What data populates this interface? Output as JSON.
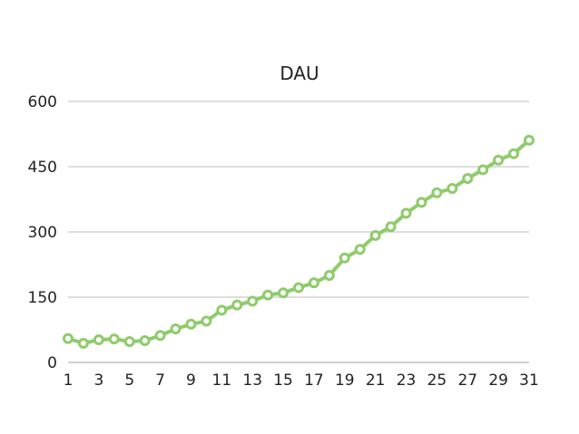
{
  "chart_data": {
    "type": "line",
    "title": "DAU",
    "xlabel": "",
    "ylabel": "",
    "x": [
      1,
      2,
      3,
      4,
      5,
      6,
      7,
      8,
      9,
      10,
      11,
      12,
      13,
      14,
      15,
      16,
      17,
      18,
      19,
      20,
      21,
      22,
      23,
      24,
      25,
      26,
      27,
      28,
      29,
      30,
      31
    ],
    "x_tick_labels": [
      "1",
      "3",
      "5",
      "7",
      "9",
      "11",
      "13",
      "15",
      "17",
      "19",
      "21",
      "23",
      "25",
      "27",
      "29",
      "31"
    ],
    "y_ticks": [
      0,
      150,
      300,
      450,
      600
    ],
    "ylim": [
      0,
      600
    ],
    "grid": true,
    "legend": "none",
    "series": [
      {
        "name": "",
        "color": "#8fcb6b",
        "values": [
          55,
          44,
          52,
          54,
          48,
          50,
          62,
          77,
          88,
          95,
          120,
          132,
          141,
          155,
          160,
          172,
          183,
          200,
          240,
          260,
          292,
          312,
          343,
          368,
          390,
          400,
          423,
          443,
          465,
          480,
          511
        ]
      }
    ]
  }
}
